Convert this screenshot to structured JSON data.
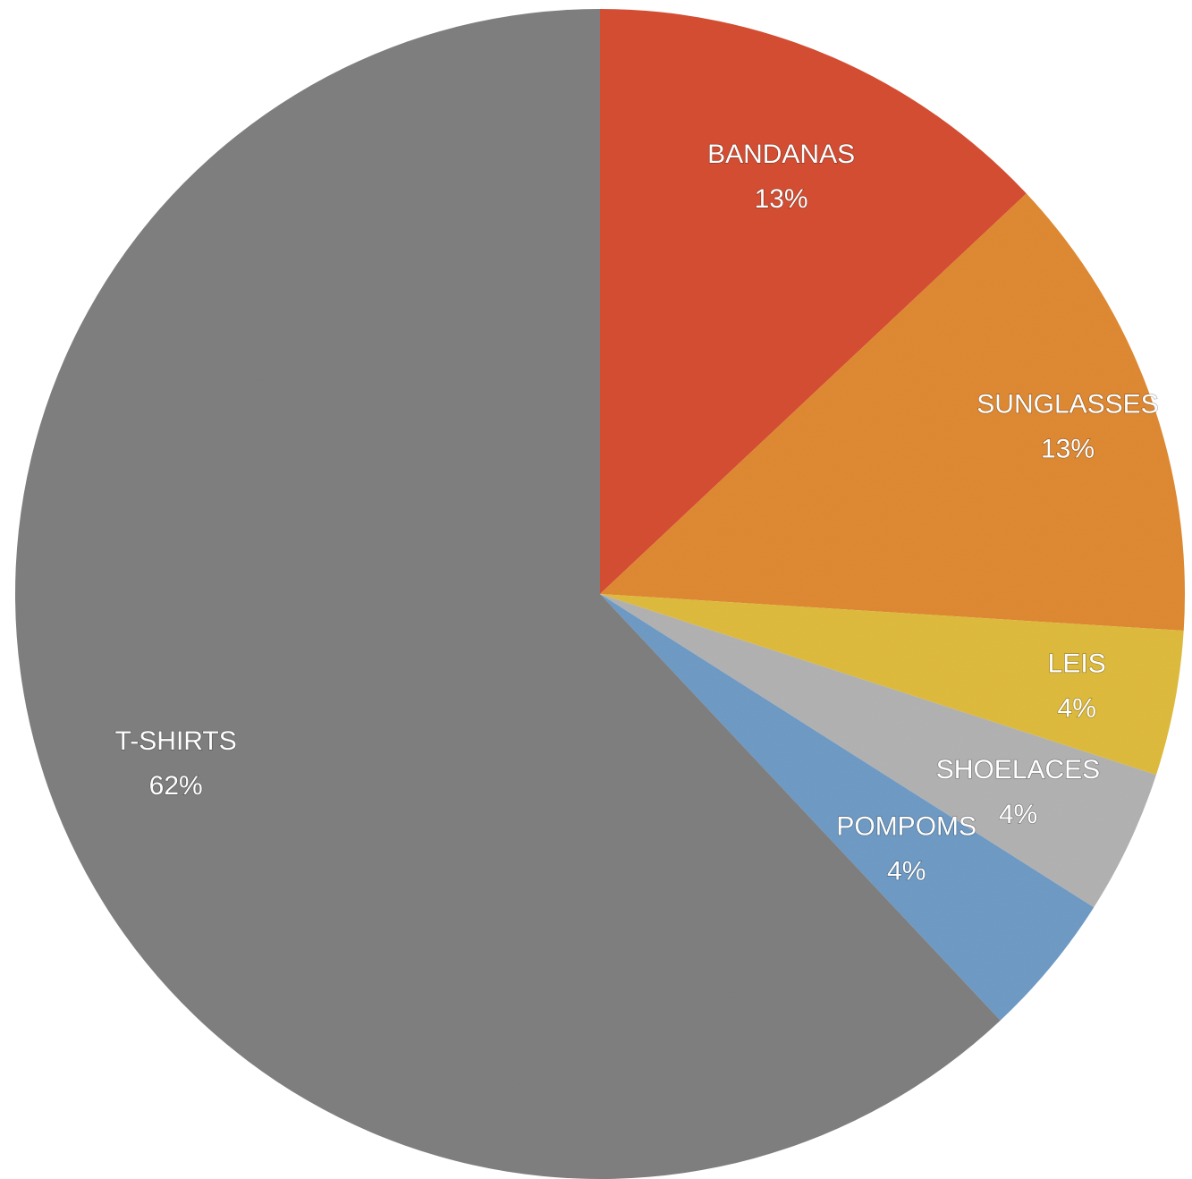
{
  "chart_data": {
    "type": "pie",
    "title": "",
    "start_angle_deg": 0,
    "direction": "clockwise",
    "slices": [
      {
        "label": "BANDANAS",
        "value": 13,
        "value_label": "13%",
        "color": "#d64f35"
      },
      {
        "label": "SUNGLASSES",
        "value": 13,
        "value_label": "13%",
        "color": "#e08a35"
      },
      {
        "label": "LEIS",
        "value": 4,
        "value_label": "4%",
        "color": "#dfbc3f"
      },
      {
        "label": "SHOELACES",
        "value": 4,
        "value_label": "4%",
        "color": "#b3b3b3"
      },
      {
        "label": "POMPOMS",
        "value": 4,
        "value_label": "4%",
        "color": "#6f9bc6"
      },
      {
        "label": "T-SHIRTS",
        "value": 62,
        "value_label": "62%",
        "color": "#808080"
      }
    ],
    "legend": "none",
    "grid": false
  }
}
